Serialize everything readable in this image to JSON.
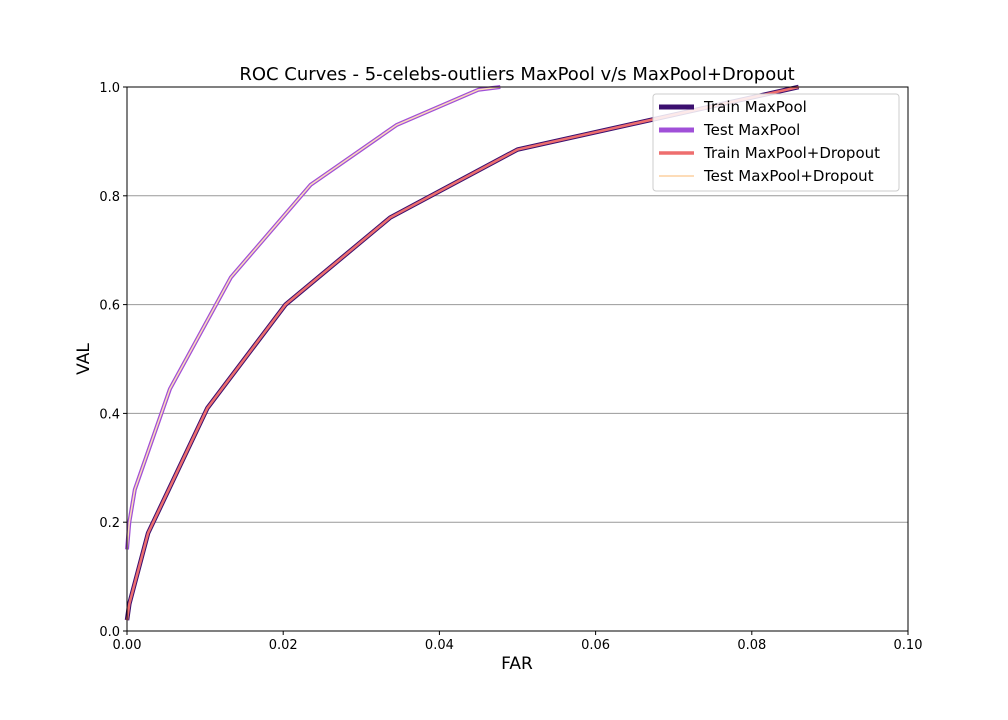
{
  "chart_data": {
    "type": "line",
    "title": "ROC Curves - 5-celebs-outliers MaxPool v/s MaxPool+Dropout",
    "xlabel": "FAR",
    "ylabel": "VAL",
    "xlim": [
      0.0,
      0.1
    ],
    "ylim": [
      0.0,
      1.0
    ],
    "grid": "horizontal",
    "legend_position": "top-right",
    "x_ticks": [
      0.0,
      0.02,
      0.04,
      0.06,
      0.08,
      0.1
    ],
    "x_tick_labels": [
      "0.00",
      "0.02",
      "0.04",
      "0.06",
      "0.08",
      "0.10"
    ],
    "y_ticks": [
      0.0,
      0.2,
      0.4,
      0.6,
      0.8,
      1.0
    ],
    "y_tick_labels": [
      "0.0",
      "0.2",
      "0.4",
      "0.6",
      "0.8",
      "1.0"
    ],
    "series": [
      {
        "name": "Train MaxPool",
        "color": "#3b0f6f",
        "x": [
          0.0,
          0.0003,
          0.0027,
          0.0103,
          0.0203,
          0.0337,
          0.05,
          0.086
        ],
        "y": [
          0.02,
          0.05,
          0.18,
          0.41,
          0.6,
          0.76,
          0.885,
          1.0
        ]
      },
      {
        "name": "Test MaxPool",
        "color": "#a050d8",
        "x": [
          0.0,
          0.0003,
          0.001,
          0.0055,
          0.0133,
          0.0235,
          0.0345,
          0.045,
          0.0478
        ],
        "y": [
          0.15,
          0.2,
          0.26,
          0.445,
          0.65,
          0.82,
          0.93,
          0.995,
          1.0
        ]
      },
      {
        "name": "Train MaxPool+Dropout",
        "color": "#ee6e6e",
        "x": [
          0.0,
          0.0003,
          0.0027,
          0.0103,
          0.0203,
          0.0337,
          0.05,
          0.086
        ],
        "y": [
          0.02,
          0.05,
          0.18,
          0.41,
          0.6,
          0.76,
          0.885,
          1.0
        ]
      },
      {
        "name": "Test MaxPool+Dropout",
        "color": "#fddcb8",
        "x": [
          0.0,
          0.0003,
          0.001,
          0.0055,
          0.0133,
          0.0235,
          0.0345,
          0.045,
          0.0478
        ],
        "y": [
          0.15,
          0.2,
          0.26,
          0.445,
          0.65,
          0.82,
          0.93,
          0.995,
          1.0
        ]
      }
    ]
  }
}
